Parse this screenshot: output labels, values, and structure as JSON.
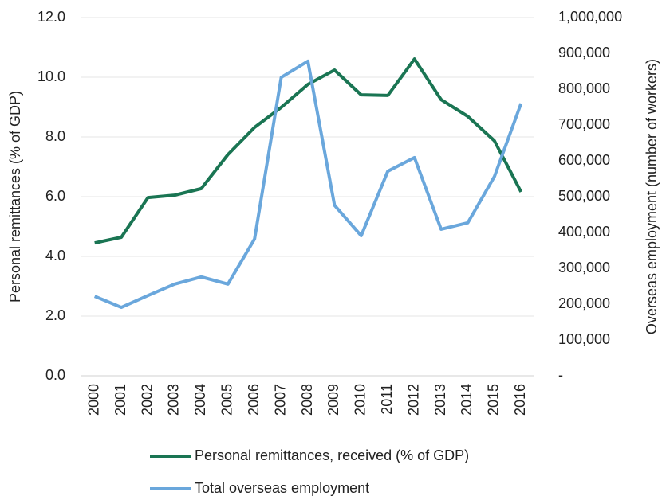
{
  "chart_data": {
    "type": "line",
    "x": [
      "2000",
      "2001",
      "2002",
      "2003",
      "2004",
      "2005",
      "2006",
      "2007",
      "2008",
      "2009",
      "2010",
      "2011",
      "2012",
      "2013",
      "2014",
      "2015",
      "2016"
    ],
    "ylabel": "Personal remittances (% of GDP)",
    "y2label": "Overseas employment (number of workers)",
    "ylim": [
      0,
      12
    ],
    "yticks": [
      {
        "value": 0,
        "label": "0.0"
      },
      {
        "value": 2,
        "label": "2.0"
      },
      {
        "value": 4,
        "label": "4.0"
      },
      {
        "value": 6,
        "label": "6.0"
      },
      {
        "value": 8,
        "label": "8.0"
      },
      {
        "value": 10,
        "label": "10.0"
      },
      {
        "value": 12,
        "label": "12.0"
      }
    ],
    "y2lim": [
      0,
      1000000
    ],
    "y2ticks": [
      {
        "value": 0,
        "label": "-"
      },
      {
        "value": 100000,
        "label": "100,000"
      },
      {
        "value": 200000,
        "label": "200,000"
      },
      {
        "value": 300000,
        "label": "300,000"
      },
      {
        "value": 400000,
        "label": "400,000"
      },
      {
        "value": 500000,
        "label": "500,000"
      },
      {
        "value": 600000,
        "label": "600,000"
      },
      {
        "value": 700000,
        "label": "700,000"
      },
      {
        "value": 800000,
        "label": "800,000"
      },
      {
        "value": 900000,
        "label": "900,000"
      },
      {
        "value": 1000000,
        "label": "1,000,000"
      }
    ],
    "grid": true,
    "legend": "bottom",
    "series": [
      {
        "name": "Personal remittances, received (% of GDP)",
        "color": "#1a7553",
        "axis": "y",
        "values": [
          4.45,
          4.64,
          5.97,
          6.05,
          6.27,
          7.41,
          8.32,
          8.99,
          9.76,
          10.24,
          9.41,
          9.39,
          10.61,
          9.25,
          8.69,
          7.87,
          6.16
        ]
      },
      {
        "name": "Total overseas employment",
        "color": "#6aa7dc",
        "axis": "y2",
        "values": [
          222000,
          191000,
          224000,
          256000,
          276000,
          256000,
          382000,
          833000,
          878000,
          476000,
          391000,
          571000,
          609000,
          409000,
          427000,
          556000,
          760000
        ]
      }
    ]
  }
}
